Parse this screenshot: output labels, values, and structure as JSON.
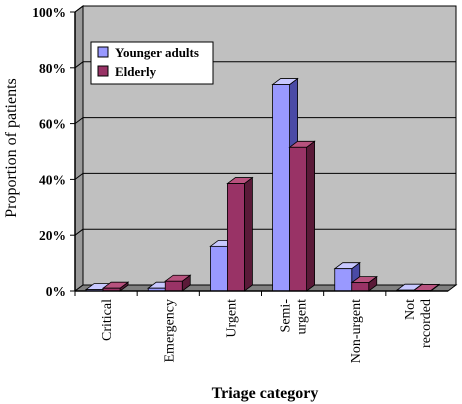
{
  "chart_data": {
    "type": "bar",
    "xlabel": "Triage category",
    "ylabel": "Proportion of patients",
    "ylim": [
      0,
      100
    ],
    "yticks": [
      "0%",
      "20%",
      "40%",
      "60%",
      "80%",
      "100%"
    ],
    "categories": [
      [
        "Critical"
      ],
      [
        "Emergency"
      ],
      [
        "Urgent"
      ],
      [
        "Semi-",
        "urgent"
      ],
      [
        "Non-urgent"
      ],
      [
        "Not",
        "recorded"
      ]
    ],
    "series": [
      {
        "name": "Younger adults",
        "values": [
          0.5,
          1,
          16,
          74,
          8,
          0.3
        ]
      },
      {
        "name": "Elderly",
        "values": [
          1,
          3.5,
          38.5,
          51.5,
          3,
          0.2
        ]
      }
    ],
    "grid": true,
    "legend_position": "top-left",
    "colors": {
      "wall": "#c0c0c0",
      "younger_front": "#9999ff",
      "younger_side": "#4a4aa6",
      "younger_top": "#c8c8ff",
      "elderly_front": "#993366",
      "elderly_side": "#5a1a38",
      "elderly_top": "#b8527e"
    }
  }
}
